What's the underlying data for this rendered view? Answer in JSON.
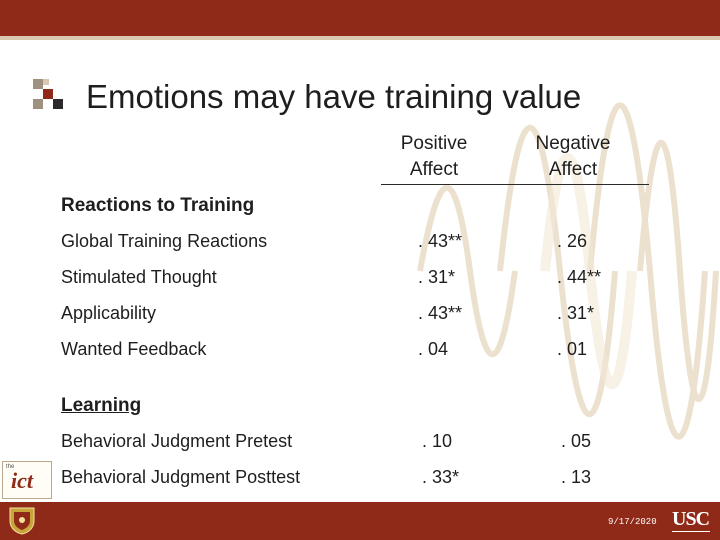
{
  "slide": {
    "title": "Emotions may have training value",
    "columns": [
      {
        "line1": "Positive",
        "line2": "Affect"
      },
      {
        "line1": "Negative",
        "line2": "Affect"
      }
    ],
    "sections": [
      {
        "heading": "Reactions to Training",
        "rows": [
          {
            "label": "Global Training Reactions",
            "positive": ". 43**",
            "negative": ". 26"
          },
          {
            "label": "Stimulated Thought",
            "positive": ". 31*",
            "negative": ". 44**"
          },
          {
            "label": "Applicability",
            "positive": ". 43**",
            "negative": ". 31*"
          },
          {
            "label": "Wanted Feedback",
            "positive": ". 04",
            "negative": ". 01"
          }
        ]
      },
      {
        "heading": "Learning",
        "rows": [
          {
            "label": "Behavioral Judgment Pretest",
            "positive": ". 10",
            "negative": ". 05"
          },
          {
            "label": "Behavioral Judgment Posttest",
            "positive": ". 33*",
            "negative": ". 13"
          }
        ]
      }
    ]
  },
  "footer": {
    "date": "9/17/2020",
    "usc_logo": "USC",
    "ict_logo": "ict"
  },
  "colors": {
    "bar": "#8e2a17",
    "accent_light": "#d9c9b0",
    "text": "#1e1e1e"
  }
}
